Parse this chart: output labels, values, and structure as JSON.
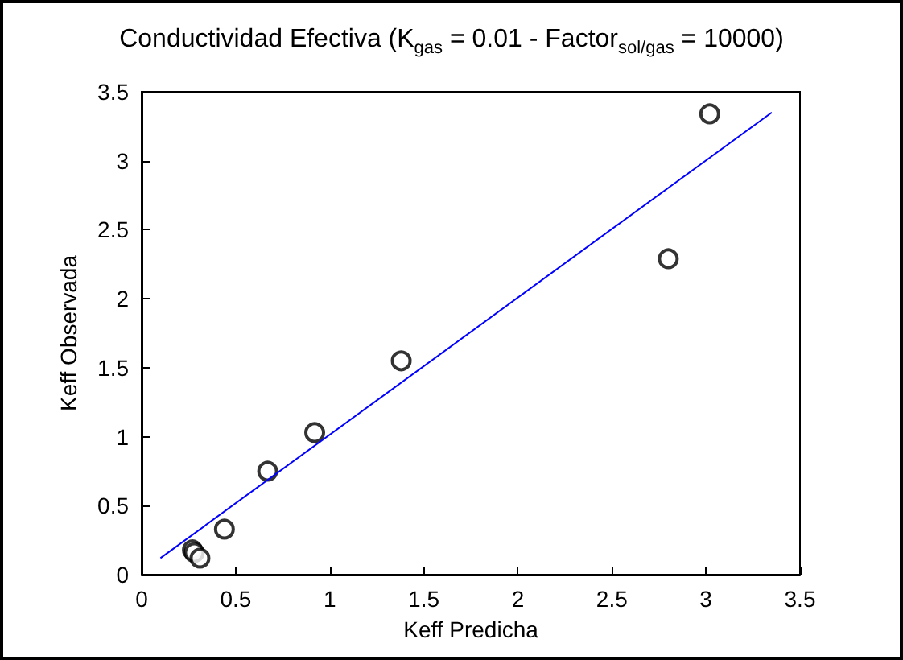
{
  "chart_data": {
    "type": "scatter",
    "title": "Conductividad Efectiva (K$_{gas}$ = 0.01 - Factor$_{sol/gas}$ = 10000)",
    "xlabel": "Keff Predicha",
    "ylabel": "Keff Observada",
    "xlim": [
      0,
      3.5
    ],
    "xticks": [
      0,
      0.5,
      1,
      1.5,
      2,
      2.5,
      3,
      3.5
    ],
    "ylim": [
      0,
      3.5
    ],
    "yticks": [
      0,
      0.5,
      1,
      1.5,
      2,
      2.5,
      3,
      3.5
    ],
    "grid": false,
    "series": [
      {
        "color": "#000000",
        "marker": "circle",
        "x": [
          0.27,
          0.28,
          0.31,
          0.44,
          0.67,
          0.92,
          1.38,
          2.8,
          3.02
        ],
        "values": [
          0.18,
          0.16,
          0.12,
          0.33,
          0.75,
          1.03,
          1.55,
          2.29,
          3.34
        ]
      },
      {
        "type": "line",
        "color": "#0000ff",
        "marker": "none",
        "line_style": "solid",
        "x": [
          0.1,
          3.35
        ],
        "values": [
          0.12,
          3.35
        ]
      }
    ]
  }
}
